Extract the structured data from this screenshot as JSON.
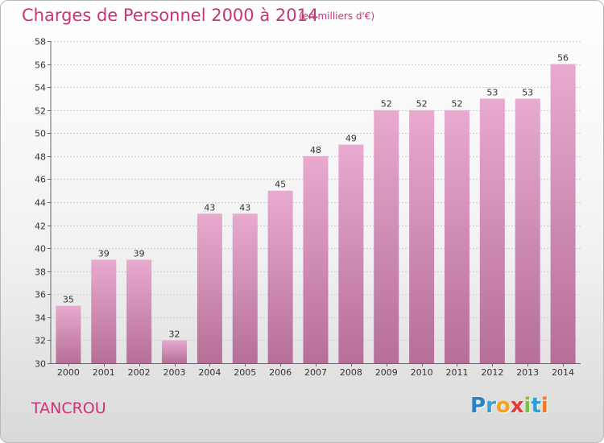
{
  "header": {
    "title": "Charges de Personnel 2000 à 2014",
    "subtitle": "(en milliers d'€)"
  },
  "footer": {
    "commune": "TANCROU",
    "logo": {
      "letters": [
        "P",
        "r",
        "o",
        "x",
        "i",
        "t",
        "i"
      ],
      "colors": [
        "#2c7fc9",
        "#3aa0d8",
        "#f7a21b",
        "#e53a3a",
        "#7cc242",
        "#2c9fd9",
        "#f07b22"
      ]
    }
  },
  "chart_data": {
    "type": "bar",
    "categories": [
      "2000",
      "2001",
      "2002",
      "2003",
      "2004",
      "2005",
      "2006",
      "2007",
      "2008",
      "2009",
      "2010",
      "2011",
      "2012",
      "2013",
      "2014"
    ],
    "values": [
      35,
      39,
      39,
      32,
      43,
      43,
      45,
      48,
      49,
      52,
      52,
      52,
      53,
      53,
      56
    ],
    "ylim": [
      30,
      58
    ],
    "yticks": [
      30,
      32,
      34,
      36,
      38,
      40,
      42,
      44,
      46,
      48,
      50,
      52,
      54,
      56,
      58
    ],
    "grid": true,
    "bar_color_top": "#e9aacf",
    "bar_color_bottom": "#b56f98"
  }
}
